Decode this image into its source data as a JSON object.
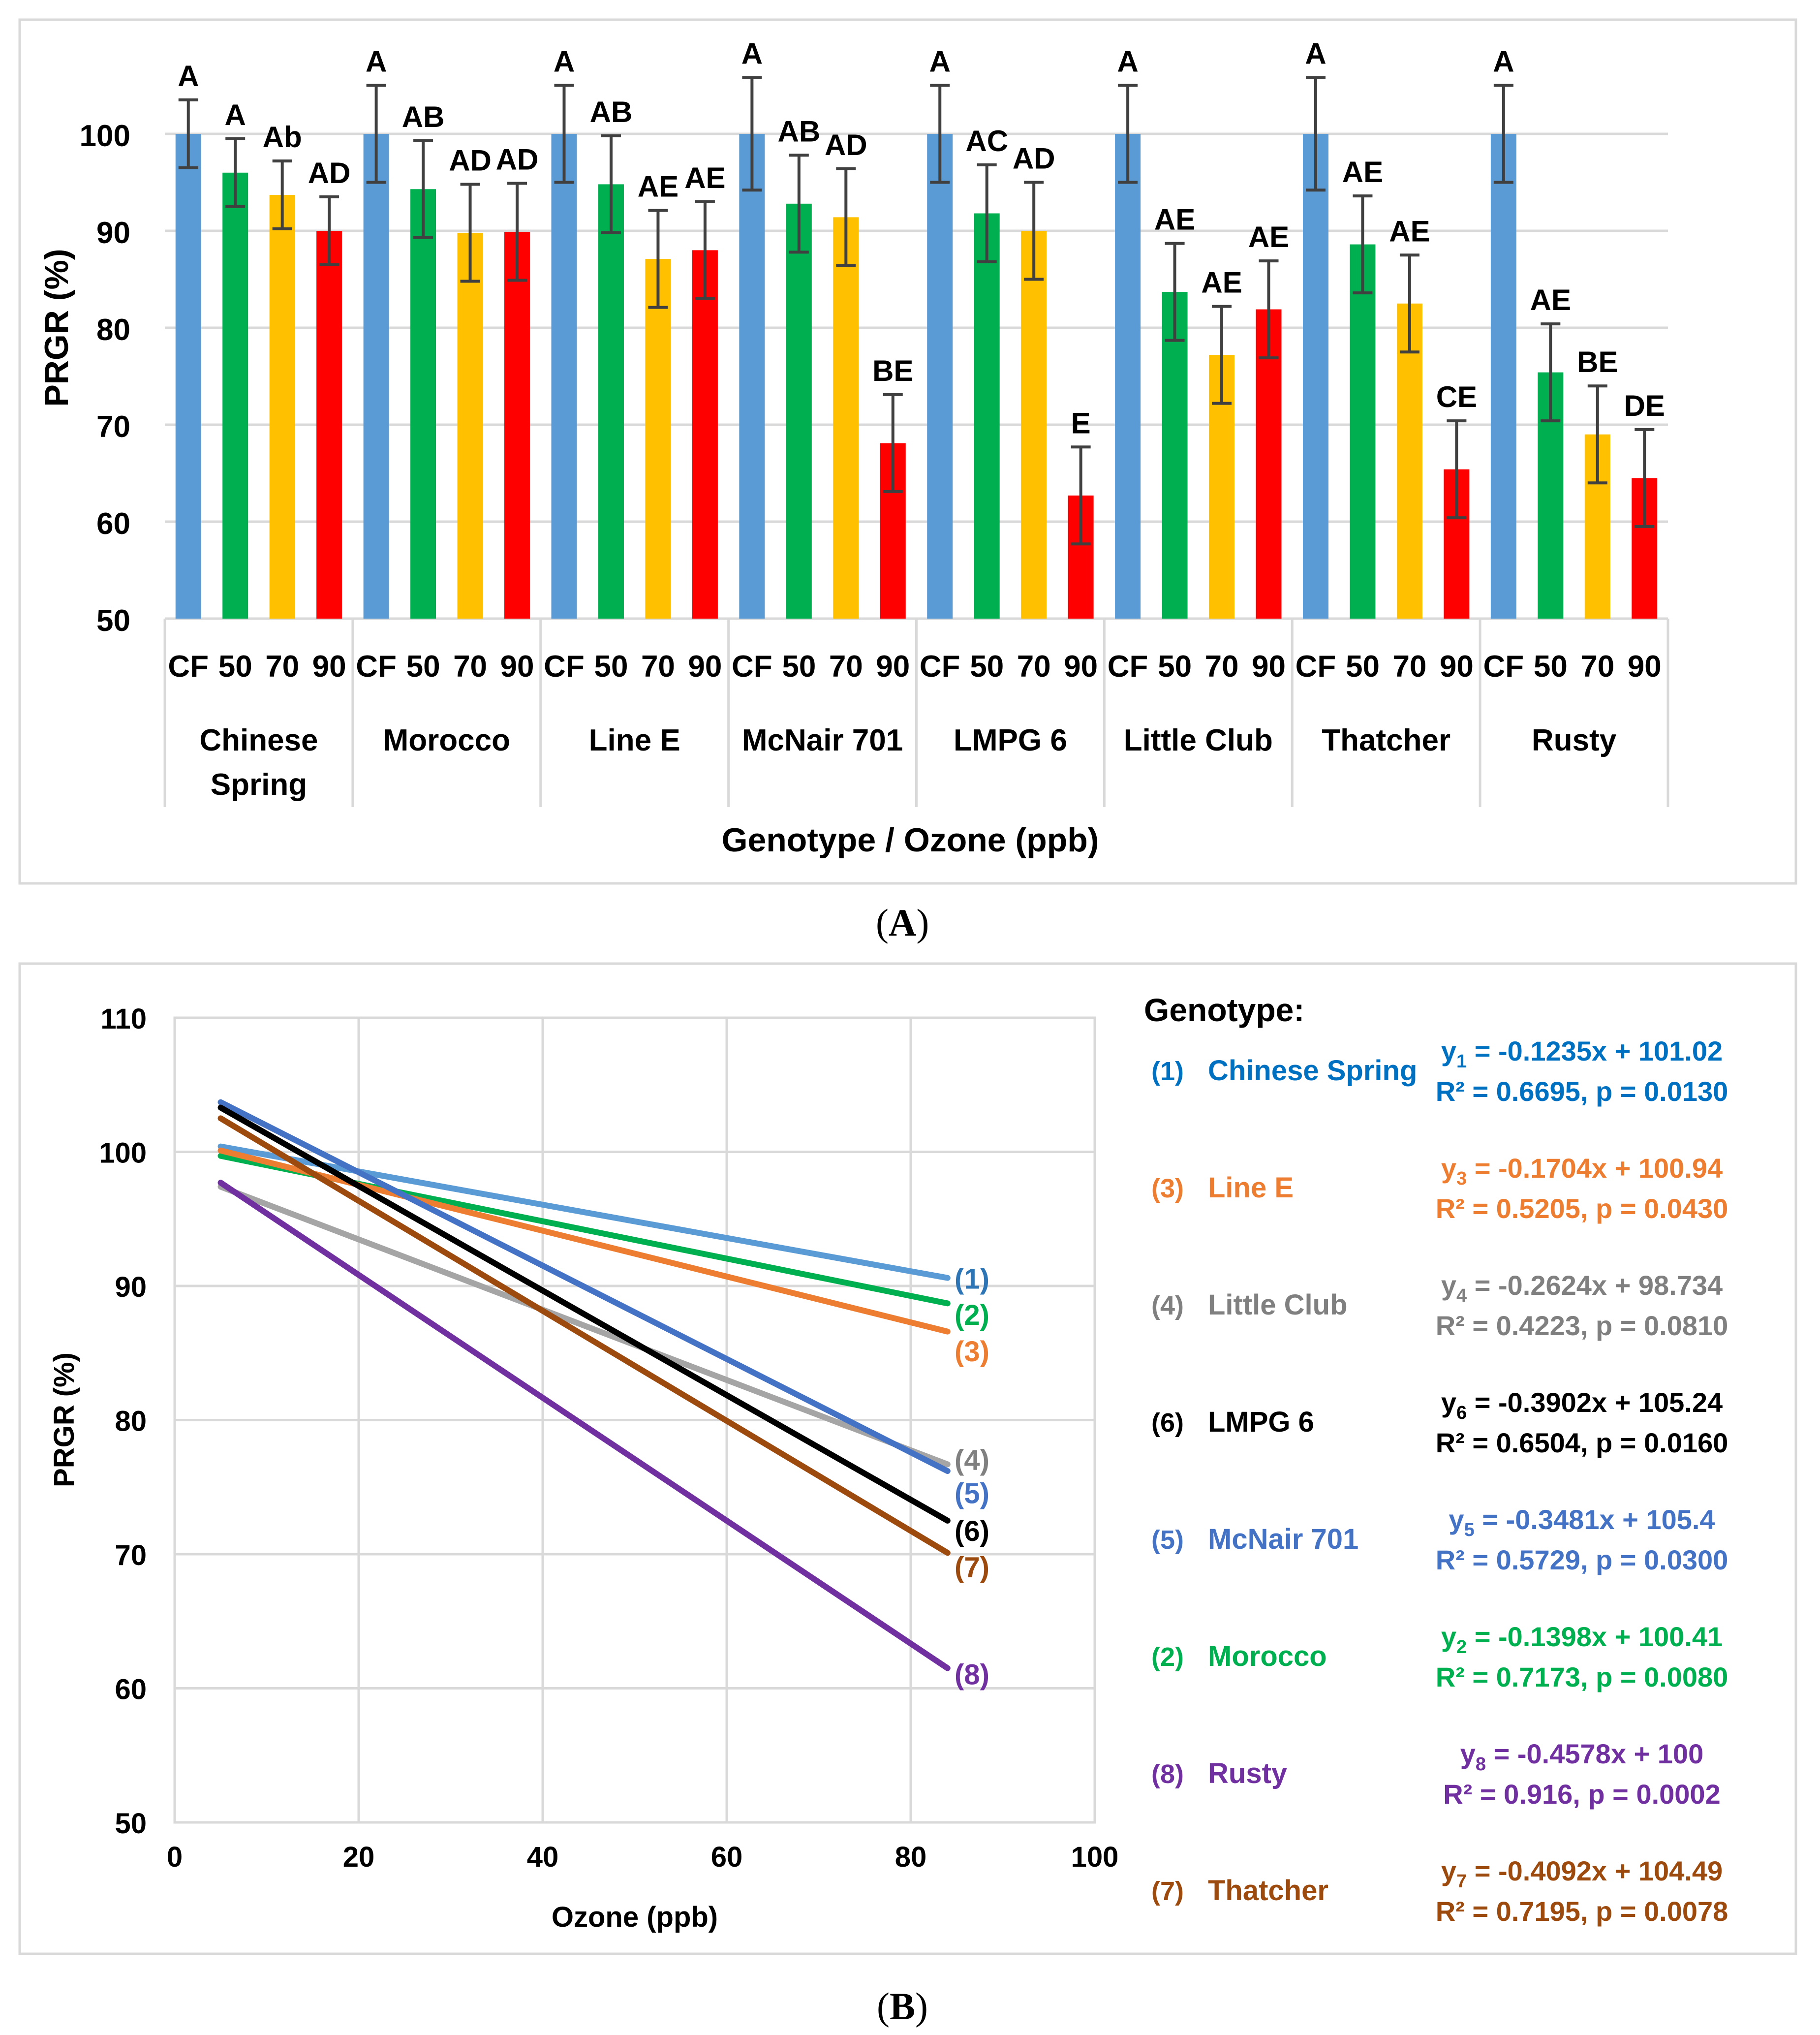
{
  "captions": {
    "a": "A",
    "b": "B"
  },
  "colors": {
    "CF": "#5B9BD5",
    "50": "#00B050",
    "70": "#FFC000",
    "90": "#FF0000"
  },
  "chart_data": [
    {
      "id": "A",
      "type": "bar",
      "title": "",
      "xlabel": "Genotype / Ozone (ppb)",
      "ylabel": "PRGR (%)",
      "ylim": [
        50,
        110
      ],
      "yticks": [
        50,
        60,
        70,
        80,
        90,
        100
      ],
      "treatments": [
        "CF",
        "50",
        "70",
        "90"
      ],
      "groups": [
        {
          "label_lines": [
            "Chinese",
            "Spring"
          ],
          "values": [
            100,
            96,
            93.7,
            90
          ],
          "errors": [
            3.5,
            3.5,
            3.5,
            3.5
          ],
          "letters": [
            "A",
            "A",
            "Ab",
            "AD"
          ]
        },
        {
          "label_lines": [
            "Morocco"
          ],
          "values": [
            100,
            94.3,
            89.8,
            89.9
          ],
          "errors": [
            5,
            5,
            5,
            5
          ],
          "letters": [
            "A",
            "AB",
            "AD",
            "AD"
          ]
        },
        {
          "label_lines": [
            "Line E"
          ],
          "values": [
            100,
            94.8,
            87.1,
            88
          ],
          "errors": [
            5,
            5,
            5,
            5
          ],
          "letters": [
            "A",
            "AB",
            "AE",
            "AE"
          ]
        },
        {
          "label_lines": [
            "McNair 701"
          ],
          "values": [
            100,
            92.8,
            91.4,
            68.1
          ],
          "errors": [
            5.8,
            5,
            5,
            5
          ],
          "letters": [
            "A",
            "AB",
            "AD",
            "BE"
          ]
        },
        {
          "label_lines": [
            "LMPG 6"
          ],
          "values": [
            100,
            91.8,
            90,
            62.7
          ],
          "errors": [
            5,
            5,
            5,
            5
          ],
          "letters": [
            "A",
            "AC",
            "AD",
            "E"
          ]
        },
        {
          "label_lines": [
            "Little Club"
          ],
          "values": [
            100,
            83.7,
            77.2,
            81.9
          ],
          "errors": [
            5,
            5,
            5,
            5
          ],
          "letters": [
            "A",
            "AE",
            "AE",
            "AE"
          ]
        },
        {
          "label_lines": [
            "Thatcher"
          ],
          "values": [
            100,
            88.6,
            82.5,
            65.4
          ],
          "errors": [
            5.8,
            5,
            5,
            5
          ],
          "letters": [
            "A",
            "AE",
            "AE",
            "CE"
          ]
        },
        {
          "label_lines": [
            "Rusty"
          ],
          "values": [
            100,
            75.4,
            69,
            64.5
          ],
          "errors": [
            5,
            5,
            5,
            5
          ],
          "letters": [
            "A",
            "AE",
            "BE",
            "DE"
          ]
        }
      ]
    },
    {
      "id": "B",
      "type": "line",
      "title": "",
      "xlabel": "Ozone (ppb)",
      "ylabel": "PRGR (%)",
      "xlim": [
        0,
        100
      ],
      "ylim": [
        50,
        110
      ],
      "xticks": [
        0,
        20,
        40,
        60,
        80,
        100
      ],
      "yticks": [
        50,
        60,
        70,
        80,
        90,
        100,
        110
      ],
      "legend_title": "Genotype:",
      "series": [
        {
          "num": "(1)",
          "name": "Chinese Spring",
          "color": "#5B9BD5",
          "x": [
            5,
            84
          ],
          "y": [
            100.4,
            90.6
          ]
        },
        {
          "num": "(2)",
          "name": "Morocco",
          "color": "#00B050",
          "x": [
            5,
            84
          ],
          "y": [
            99.7,
            88.7
          ]
        },
        {
          "num": "(3)",
          "name": "Line E",
          "color": "#ED7D31",
          "x": [
            5,
            84
          ],
          "y": [
            100.1,
            86.6
          ]
        },
        {
          "num": "(4)",
          "name": "Little Club",
          "color": "#A5A5A5",
          "x": [
            5,
            84
          ],
          "y": [
            97.4,
            76.7
          ]
        },
        {
          "num": "(5)",
          "name": "McNair 701",
          "color": "#4472C4",
          "x": [
            5,
            84
          ],
          "y": [
            103.7,
            76.2
          ]
        },
        {
          "num": "(6)",
          "name": "LMPG 6",
          "color": "#000000",
          "x": [
            5,
            84
          ],
          "y": [
            103.3,
            72.5
          ]
        },
        {
          "num": "(7)",
          "name": "Thatcher",
          "color": "#9C4A0E",
          "x": [
            5,
            84
          ],
          "y": [
            102.5,
            70.1
          ]
        },
        {
          "num": "(8)",
          "name": "Rusty",
          "color": "#7030A0",
          "x": [
            5,
            84
          ],
          "y": [
            97.7,
            61.5
          ]
        }
      ],
      "end_labels": [
        {
          "text": "(1)",
          "color": "#2E75B6",
          "y": 90.6
        },
        {
          "text": "(2)",
          "color": "#00B050",
          "y": 87.9
        },
        {
          "text": "(3)",
          "color": "#ED7D31",
          "y": 85.2
        },
        {
          "text": "(4)",
          "color": "#808080",
          "y": 77.1
        },
        {
          "text": "(5)",
          "color": "#4472C4",
          "y": 74.6
        },
        {
          "text": "(6)",
          "color": "#000000",
          "y": 71.8
        },
        {
          "text": "(7)",
          "color": "#9C4A0E",
          "y": 69.1
        },
        {
          "text": "(8)",
          "color": "#7030A0",
          "y": 61.1
        }
      ],
      "legend": [
        {
          "num": "(1)",
          "name": "Chinese Spring",
          "color": "#0070C0",
          "eq_pre": "y",
          "sub": "1",
          "eq_post": " = -0.1235x + 101.02",
          "stats": "R² = 0.6695, p = 0.0130"
        },
        {
          "num": "(3)",
          "name": "Line E",
          "color": "#ED7D31",
          "eq_pre": "y",
          "sub": "3",
          "eq_post": " = -0.1704x + 100.94",
          "stats": "R² = 0.5205, p = 0.0430"
        },
        {
          "num": "(4)",
          "name": "Little Club",
          "color": "#808080",
          "eq_pre": "y",
          "sub": "4",
          "eq_post": " = -0.2624x + 98.734",
          "stats": "R² = 0.4223, p = 0.0810"
        },
        {
          "num": "(6)",
          "name": "LMPG 6",
          "color": "#000000",
          "eq_pre": "y",
          "sub": "6",
          "eq_post": " = -0.3902x + 105.24",
          "stats": "R² = 0.6504, p = 0.0160"
        },
        {
          "num": "(5)",
          "name": "McNair 701",
          "color": "#4472C4",
          "eq_pre": "y",
          "sub": "5",
          "eq_post": " = -0.3481x + 105.4",
          "stats": "R² = 0.5729, p = 0.0300"
        },
        {
          "num": "(2)",
          "name": "Morocco",
          "color": "#00B050",
          "eq_pre": "y",
          "sub": "2",
          "eq_post": " = -0.1398x + 100.41",
          "stats": "R² = 0.7173, p = 0.0080"
        },
        {
          "num": "(8)",
          "name": "Rusty",
          "color": "#7030A0",
          "eq_pre": "y",
          "sub": "8",
          "eq_post": " = -0.4578x + 100",
          "stats": "R² = 0.916, p = 0.0002"
        },
        {
          "num": "(7)",
          "name": "Thatcher",
          "color": "#9C4A0E",
          "eq_pre": "y",
          "sub": "7",
          "eq_post": " = -0.4092x + 104.49",
          "stats": "R² = 0.7195, p = 0.0078"
        }
      ]
    }
  ]
}
